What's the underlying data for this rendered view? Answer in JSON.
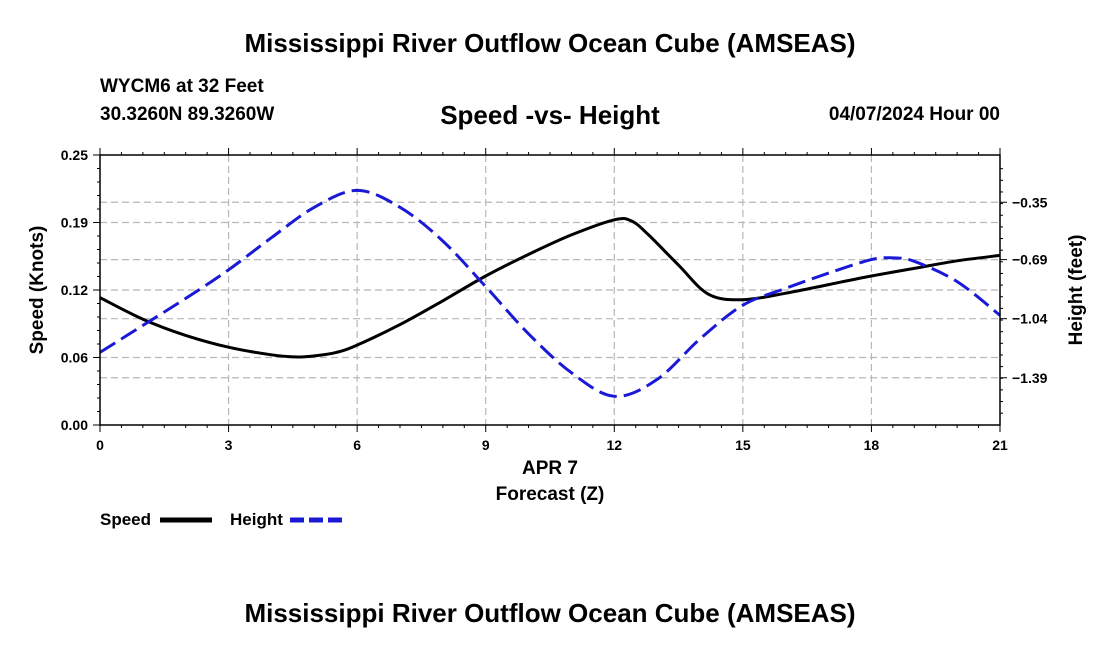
{
  "header": {
    "title": "Mississippi River Outflow Ocean Cube (AMSEAS)",
    "station": "WYCM6 at 32 Feet",
    "coords": "30.3260N  89.3260W",
    "subtitle": "Speed -vs- Height",
    "datetime": "04/07/2024 Hour 00"
  },
  "footer": {
    "title": "Mississippi River Outflow Ocean Cube (AMSEAS)"
  },
  "chart_data": {
    "type": "line",
    "title": "Speed -vs- Height",
    "xlabel_line1": "APR 7",
    "xlabel": "Forecast (Z)",
    "ylabel": "Speed (Knots)",
    "y2label": "Height (feet)",
    "xlim": [
      0,
      21
    ],
    "ylim": [
      0,
      0.25
    ],
    "y2lim": [
      -1.67,
      -0.07
    ],
    "x_ticks": [
      0,
      3,
      6,
      9,
      12,
      15,
      18,
      21
    ],
    "x_tick_labels": [
      "0",
      "3",
      "6",
      "9",
      "12",
      "15",
      "18",
      "21"
    ],
    "y_ticks": [
      0,
      0.0625,
      0.125,
      0.1875,
      0.25
    ],
    "y_tick_labels": [
      "0.00",
      "0.06",
      "0.12",
      "0.19",
      "0.25"
    ],
    "y2_ticks": [
      -0.35,
      -0.69,
      -1.04,
      -1.39
    ],
    "y2_tick_labels": [
      "−0.35",
      "−0.69",
      "−1.04",
      "−1.39"
    ],
    "grid": true,
    "series": [
      {
        "name": "Speed",
        "axis": "left",
        "color": "#000000",
        "style": "solid",
        "x": [
          0,
          1,
          2,
          3,
          4,
          4.6,
          5,
          5.5,
          6,
          7,
          8,
          9,
          10,
          11,
          12,
          12.4,
          12.8,
          13.5,
          14.2,
          15,
          16,
          17,
          18,
          19,
          20,
          21
        ],
        "values": [
          0.118,
          0.098,
          0.083,
          0.072,
          0.065,
          0.063,
          0.064,
          0.067,
          0.074,
          0.093,
          0.115,
          0.138,
          0.158,
          0.176,
          0.19,
          0.189,
          0.176,
          0.148,
          0.121,
          0.116,
          0.122,
          0.13,
          0.138,
          0.145,
          0.152,
          0.157
        ]
      },
      {
        "name": "Height",
        "axis": "right",
        "color": "#1a1ad6",
        "style": "dashed",
        "x": [
          0,
          1,
          2,
          3,
          4,
          5,
          6,
          7,
          8,
          9,
          10,
          11,
          12,
          13,
          14,
          15,
          16,
          17,
          18,
          18.5,
          19,
          20,
          21
        ],
        "values": [
          -1.24,
          -1.08,
          -0.92,
          -0.75,
          -0.56,
          -0.38,
          -0.28,
          -0.38,
          -0.58,
          -0.85,
          -1.13,
          -1.36,
          -1.5,
          -1.4,
          -1.16,
          -0.96,
          -0.86,
          -0.77,
          -0.69,
          -0.68,
          -0.7,
          -0.82,
          -1.02
        ]
      }
    ]
  },
  "legend": [
    {
      "label": "Speed",
      "color": "#000000",
      "style": "solid"
    },
    {
      "label": "Height",
      "color": "#1a1ad6",
      "style": "dashed"
    }
  ]
}
